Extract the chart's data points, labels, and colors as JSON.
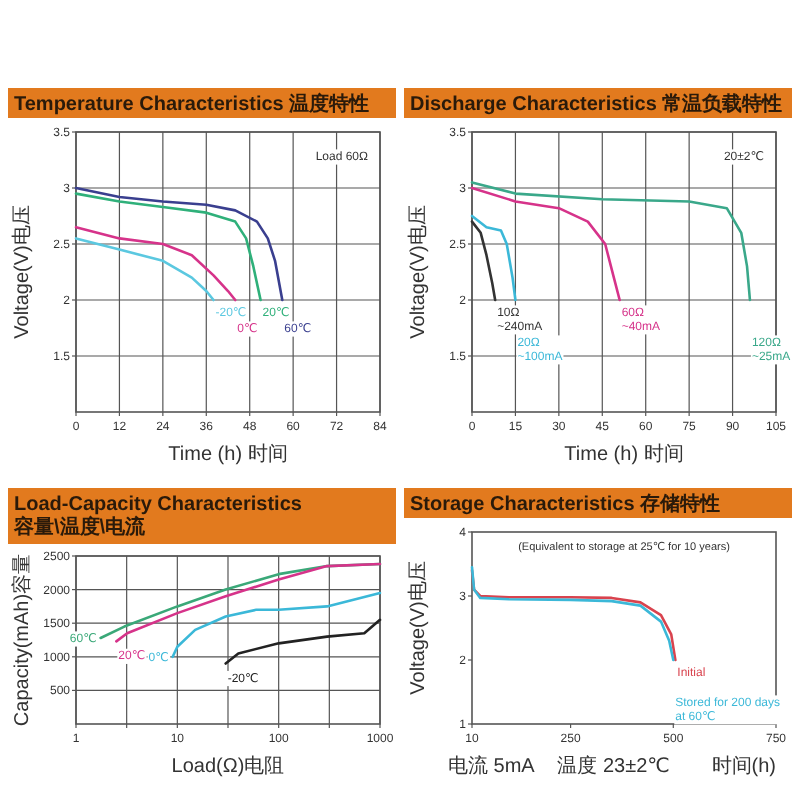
{
  "chart_data": [
    {
      "type": "line",
      "title": "Temperature Characteristics 温度特性",
      "xlabel": "Time (h) 时间",
      "ylabel": "Voltage(V)电压",
      "xlim": [
        0,
        84
      ],
      "ylim": [
        1,
        3.5
      ],
      "xticks": [
        0,
        12,
        24,
        36,
        48,
        60,
        72,
        84
      ],
      "yticks": [
        1.5,
        2.0,
        2.5,
        3.0,
        3.5
      ],
      "grid": true,
      "annotations": [
        "Load 60Ω"
      ],
      "series": [
        {
          "name": "-20℃",
          "color": "#5bc8e0",
          "x": [
            0,
            12,
            24,
            32,
            36,
            38
          ],
          "values": [
            2.55,
            2.45,
            2.35,
            2.2,
            2.08,
            2.0
          ]
        },
        {
          "name": "0℃",
          "color": "#d6338a",
          "x": [
            0,
            12,
            24,
            32,
            38,
            42,
            44
          ],
          "values": [
            2.65,
            2.55,
            2.5,
            2.4,
            2.22,
            2.08,
            2.0
          ]
        },
        {
          "name": "20℃",
          "color": "#2fb07a",
          "x": [
            0,
            12,
            24,
            36,
            44,
            47,
            49,
            51
          ],
          "values": [
            2.95,
            2.88,
            2.83,
            2.78,
            2.7,
            2.55,
            2.3,
            2.0
          ]
        },
        {
          "name": "60℃",
          "color": "#3a3f8f",
          "x": [
            0,
            12,
            24,
            36,
            44,
            50,
            53,
            55,
            57
          ],
          "values": [
            3.0,
            2.92,
            2.88,
            2.85,
            2.8,
            2.7,
            2.55,
            2.35,
            2.0
          ]
        }
      ]
    },
    {
      "type": "line",
      "title": "Discharge Characteristics 常温负载特性",
      "xlabel": "Time (h) 时间",
      "ylabel": "Voltage(V)电压",
      "xlim": [
        0,
        105
      ],
      "ylim": [
        1,
        3.5
      ],
      "xticks": [
        0,
        15,
        30,
        45,
        60,
        75,
        90,
        105
      ],
      "yticks": [
        1.5,
        2.0,
        2.5,
        3.0,
        3.5
      ],
      "grid": true,
      "annotations": [
        "20±2℃"
      ],
      "series": [
        {
          "name": "10Ω\n~240mA",
          "color": "#333333",
          "x": [
            0,
            3,
            5,
            7,
            8
          ],
          "values": [
            2.7,
            2.6,
            2.4,
            2.15,
            2.0
          ]
        },
        {
          "name": "20Ω\n~100mA",
          "color": "#3bb8d8",
          "x": [
            0,
            5,
            10,
            12,
            14,
            15
          ],
          "values": [
            2.75,
            2.65,
            2.62,
            2.5,
            2.2,
            2.0
          ]
        },
        {
          "name": "60Ω\n~40mA",
          "color": "#d6338a",
          "x": [
            0,
            15,
            30,
            40,
            46,
            49,
            51
          ],
          "values": [
            3.0,
            2.88,
            2.82,
            2.7,
            2.5,
            2.2,
            2.0
          ]
        },
        {
          "name": "120Ω\n~25mA",
          "color": "#3aa88a",
          "x": [
            0,
            15,
            45,
            75,
            88,
            93,
            95,
            96
          ],
          "values": [
            3.05,
            2.95,
            2.9,
            2.88,
            2.82,
            2.6,
            2.3,
            2.0
          ]
        }
      ]
    },
    {
      "type": "line",
      "title": "Load-Capacity Characteristics 容量\\温度\\电流",
      "xlabel": "Load(Ω)电阻",
      "ylabel": "Capacity(mAh)容量",
      "log": "x",
      "xlim": [
        1,
        1000
      ],
      "ylim": [
        0,
        2500
      ],
      "xticks": [
        1,
        {
          "value": 3.162,
          "label": null
        },
        10,
        {
          "value": 31.62,
          "label": null
        },
        100,
        {
          "value": 316.2,
          "label": null
        },
        1000
      ],
      "yticks": [
        500,
        1000,
        1500,
        2000,
        2500
      ],
      "grid": true,
      "series": [
        {
          "name": "60℃",
          "color": "#3aa878",
          "x": [
            1.75,
            3,
            10,
            30,
            100,
            300,
            1000
          ],
          "values": [
            1280,
            1450,
            1750,
            2000,
            2230,
            2350,
            2380
          ]
        },
        {
          "name": "20℃",
          "color": "#d6338a",
          "x": [
            2.5,
            3.2,
            10,
            30,
            100,
            300,
            1000
          ],
          "values": [
            1230,
            1350,
            1650,
            1900,
            2150,
            2350,
            2380
          ]
        },
        {
          "name": "0℃",
          "color": "#3bb8d8",
          "x": [
            9,
            10,
            15,
            30,
            60,
            100,
            300,
            1000
          ],
          "values": [
            1000,
            1150,
            1400,
            1600,
            1700,
            1700,
            1750,
            1950
          ]
        },
        {
          "name": "-20℃",
          "color": "#222222",
          "x": [
            30,
            40,
            100,
            300,
            700,
            1000
          ],
          "values": [
            900,
            1050,
            1200,
            1300,
            1350,
            1550
          ]
        }
      ]
    },
    {
      "type": "line",
      "title": "Storage Characteristics 存储特性",
      "xlabel": "时间(h)",
      "ylabel": "Voltage(V)电压",
      "xlim": [
        10,
        750
      ],
      "ylim": [
        1,
        4
      ],
      "xticks": [
        10,
        250,
        500,
        750
      ],
      "yticks": [
        1,
        2,
        3,
        4
      ],
      "annotations": [
        "电流 5mA",
        "温度 23±2℃",
        "(Equivalent to storage at 25℃ for 10 years)"
      ],
      "series": [
        {
          "name": "Initial",
          "color": "#d9434e",
          "x": [
            10,
            15,
            30,
            100,
            250,
            350,
            420,
            470,
            495,
            505
          ],
          "values": [
            3.4,
            3.1,
            3.0,
            2.98,
            2.98,
            2.97,
            2.9,
            2.7,
            2.4,
            2.0
          ]
        },
        {
          "name": "Stored for 200 days\nat 60℃",
          "color": "#3bb8d8",
          "x": [
            10,
            15,
            30,
            100,
            250,
            350,
            420,
            470,
            490,
            500
          ],
          "values": [
            3.45,
            3.1,
            2.97,
            2.95,
            2.94,
            2.92,
            2.85,
            2.6,
            2.3,
            2.0
          ]
        }
      ]
    }
  ]
}
